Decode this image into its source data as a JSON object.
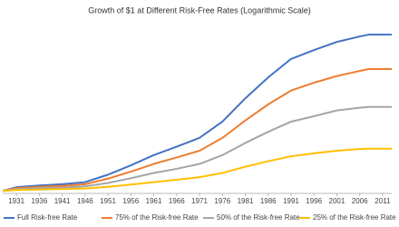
{
  "chart_data": {
    "type": "line",
    "title": "Growth of $1 at Different Risk-Free Rates (Logarithmic Scale)",
    "x": [
      1928,
      1931,
      1936,
      1941,
      1946,
      1951,
      1956,
      1961,
      1966,
      1971,
      1976,
      1981,
      1986,
      1991,
      1996,
      2001,
      2006,
      2008,
      2011,
      2013
    ],
    "xlim": [
      1928,
      2013
    ],
    "xticks": [
      1931,
      1936,
      1941,
      1946,
      1951,
      1956,
      1961,
      1966,
      1971,
      1976,
      1981,
      1986,
      1991,
      1996,
      2001,
      2006,
      2011
    ],
    "ylim": [
      0.95,
      32
    ],
    "log_scale": true,
    "grid": false,
    "legend": "bottom",
    "series": [
      {
        "name": "Full Risk-free Rate",
        "color": "#4472c4",
        "values": [
          1,
          1.08,
          1.12,
          1.15,
          1.2,
          1.4,
          1.7,
          2.1,
          2.5,
          3.0,
          4.2,
          6.8,
          10.5,
          15.4,
          18.5,
          21.9,
          24.5,
          25.5,
          25.5,
          25.5
        ]
      },
      {
        "name": "75% of the Risk-free Rate",
        "color": "#ed7d31",
        "values": [
          1,
          1.06,
          1.09,
          1.11,
          1.15,
          1.29,
          1.49,
          1.75,
          2.0,
          2.3,
          3.0,
          4.3,
          6.0,
          8.0,
          9.4,
          10.8,
          12.0,
          12.5,
          12.5,
          12.5
        ]
      },
      {
        "name": "50% of the Risk-free Rate",
        "color": "#a5a5a5",
        "values": [
          1,
          1.04,
          1.06,
          1.07,
          1.1,
          1.18,
          1.3,
          1.45,
          1.58,
          1.75,
          2.1,
          2.7,
          3.4,
          4.2,
          4.7,
          5.3,
          5.6,
          5.7,
          5.7,
          5.7
        ]
      },
      {
        "name": "25% of the Risk-free Rate",
        "color": "#ffc000",
        "values": [
          1,
          1.02,
          1.03,
          1.04,
          1.05,
          1.09,
          1.14,
          1.2,
          1.26,
          1.33,
          1.45,
          1.65,
          1.85,
          2.05,
          2.18,
          2.3,
          2.38,
          2.4,
          2.4,
          2.4
        ]
      }
    ]
  }
}
